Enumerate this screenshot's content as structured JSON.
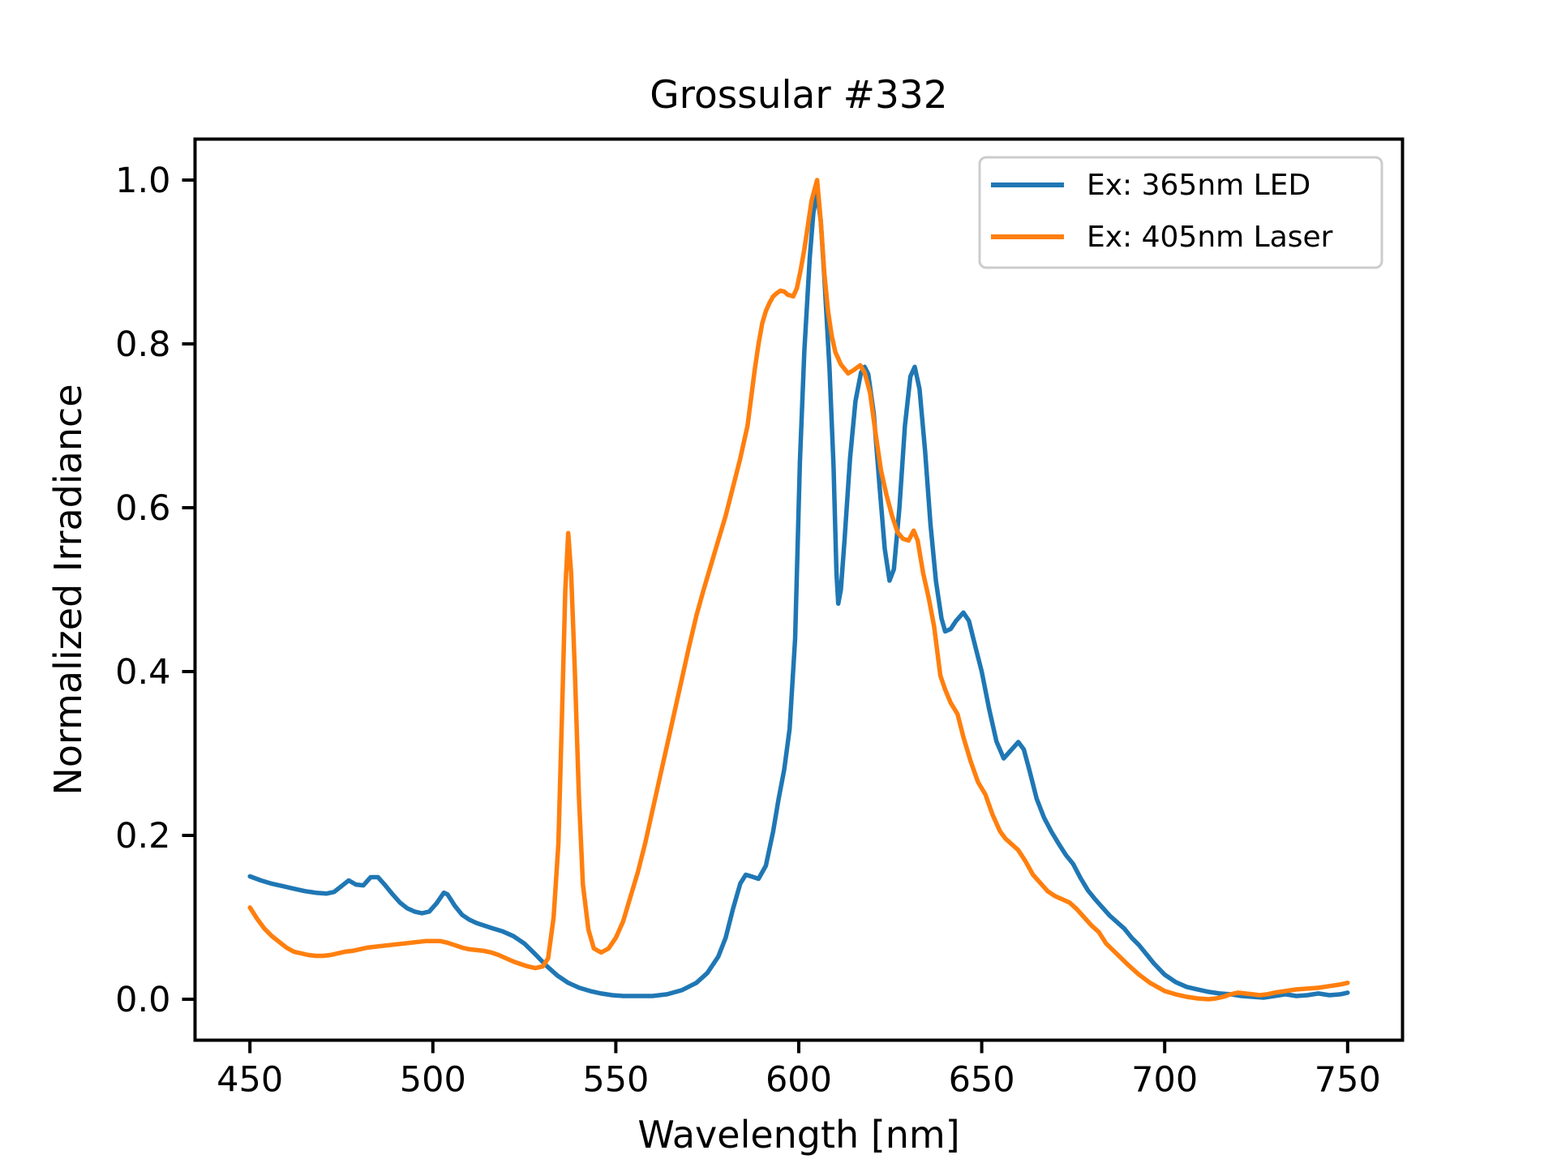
{
  "figure": {
    "background": "#ffffff",
    "text_color": "#000000",
    "spine_color": "#000000"
  },
  "legend": {
    "border_color": "#cccccc",
    "background": "#ffffff"
  },
  "chart_data": {
    "type": "line",
    "title": "Grossular #332",
    "xlabel": "Wavelength [nm]",
    "ylabel": "Normalized Irradiance",
    "xlim": [
      435,
      765
    ],
    "ylim": [
      -0.05,
      1.05
    ],
    "x_ticks": [
      450,
      500,
      550,
      600,
      650,
      700,
      750
    ],
    "y_ticks": [
      0.0,
      0.2,
      0.4,
      0.6,
      0.8,
      1.0
    ],
    "grid": false,
    "legend_position": "upper right",
    "series": [
      {
        "name": "Ex: 365nm LED",
        "color": "#1f77b4",
        "points": [
          [
            450,
            0.15
          ],
          [
            453,
            0.145
          ],
          [
            456,
            0.141
          ],
          [
            459,
            0.138
          ],
          [
            462,
            0.135
          ],
          [
            465,
            0.132
          ],
          [
            468,
            0.13
          ],
          [
            471,
            0.129
          ],
          [
            473,
            0.131
          ],
          [
            475,
            0.138
          ],
          [
            477,
            0.145
          ],
          [
            479,
            0.14
          ],
          [
            481,
            0.139
          ],
          [
            483,
            0.149
          ],
          [
            485,
            0.149
          ],
          [
            487,
            0.139
          ],
          [
            489,
            0.128
          ],
          [
            491,
            0.118
          ],
          [
            493,
            0.111
          ],
          [
            495,
            0.107
          ],
          [
            497,
            0.105
          ],
          [
            499,
            0.107
          ],
          [
            501,
            0.117
          ],
          [
            503,
            0.13
          ],
          [
            504,
            0.128
          ],
          [
            506,
            0.114
          ],
          [
            508,
            0.103
          ],
          [
            510,
            0.097
          ],
          [
            512,
            0.093
          ],
          [
            514,
            0.09
          ],
          [
            516,
            0.087
          ],
          [
            519,
            0.083
          ],
          [
            522,
            0.077
          ],
          [
            525,
            0.068
          ],
          [
            528,
            0.055
          ],
          [
            531,
            0.041
          ],
          [
            534,
            0.029
          ],
          [
            537,
            0.02
          ],
          [
            540,
            0.014
          ],
          [
            543,
            0.01
          ],
          [
            546,
            0.007
          ],
          [
            549,
            0.005
          ],
          [
            552,
            0.004
          ],
          [
            556,
            0.004
          ],
          [
            560,
            0.004
          ],
          [
            564,
            0.006
          ],
          [
            568,
            0.011
          ],
          [
            572,
            0.02
          ],
          [
            575,
            0.032
          ],
          [
            578,
            0.052
          ],
          [
            580,
            0.075
          ],
          [
            582,
            0.11
          ],
          [
            584,
            0.141
          ],
          [
            585.5,
            0.152
          ],
          [
            587,
            0.15
          ],
          [
            589,
            0.147
          ],
          [
            591,
            0.163
          ],
          [
            593,
            0.205
          ],
          [
            594.5,
            0.245
          ],
          [
            596,
            0.28
          ],
          [
            597.5,
            0.33
          ],
          [
            599,
            0.44
          ],
          [
            600.3,
            0.656
          ],
          [
            601.5,
            0.79
          ],
          [
            603,
            0.905
          ],
          [
            604,
            0.96
          ],
          [
            605,
            0.985
          ],
          [
            606,
            0.95
          ],
          [
            607,
            0.88
          ],
          [
            608.4,
            0.77
          ],
          [
            609.5,
            0.65
          ],
          [
            610.3,
            0.52
          ],
          [
            610.8,
            0.483
          ],
          [
            611.5,
            0.5
          ],
          [
            612.5,
            0.56
          ],
          [
            614,
            0.66
          ],
          [
            615.5,
            0.73
          ],
          [
            617,
            0.765
          ],
          [
            618,
            0.772
          ],
          [
            619,
            0.763
          ],
          [
            620.5,
            0.715
          ],
          [
            622,
            0.63
          ],
          [
            623.5,
            0.55
          ],
          [
            624.8,
            0.511
          ],
          [
            626,
            0.525
          ],
          [
            627.5,
            0.6
          ],
          [
            629,
            0.7
          ],
          [
            630.5,
            0.76
          ],
          [
            631.7,
            0.772
          ],
          [
            633,
            0.745
          ],
          [
            634.5,
            0.67
          ],
          [
            636,
            0.58
          ],
          [
            637.5,
            0.51
          ],
          [
            639,
            0.465
          ],
          [
            640,
            0.449
          ],
          [
            641.5,
            0.452
          ],
          [
            643,
            0.462
          ],
          [
            645,
            0.472
          ],
          [
            646.5,
            0.462
          ],
          [
            648,
            0.435
          ],
          [
            650,
            0.4
          ],
          [
            652,
            0.355
          ],
          [
            654,
            0.315
          ],
          [
            656,
            0.294
          ],
          [
            658,
            0.304
          ],
          [
            660,
            0.314
          ],
          [
            661.5,
            0.305
          ],
          [
            663,
            0.28
          ],
          [
            665,
            0.245
          ],
          [
            667,
            0.222
          ],
          [
            669,
            0.205
          ],
          [
            671,
            0.19
          ],
          [
            673,
            0.176
          ],
          [
            675,
            0.165
          ],
          [
            677,
            0.148
          ],
          [
            679,
            0.133
          ],
          [
            681,
            0.122
          ],
          [
            683,
            0.112
          ],
          [
            685,
            0.102
          ],
          [
            687,
            0.094
          ],
          [
            689,
            0.086
          ],
          [
            691,
            0.075
          ],
          [
            693,
            0.066
          ],
          [
            695,
            0.055
          ],
          [
            697,
            0.044
          ],
          [
            700,
            0.03
          ],
          [
            703,
            0.021
          ],
          [
            706,
            0.015
          ],
          [
            709,
            0.012
          ],
          [
            712,
            0.009
          ],
          [
            715,
            0.007
          ],
          [
            718,
            0.006
          ],
          [
            721,
            0.004
          ],
          [
            724,
            0.003
          ],
          [
            727,
            0.002
          ],
          [
            730,
            0.004
          ],
          [
            733,
            0.006
          ],
          [
            736,
            0.004
          ],
          [
            739,
            0.005
          ],
          [
            742,
            0.007
          ],
          [
            745,
            0.005
          ],
          [
            748,
            0.006
          ],
          [
            750,
            0.008
          ]
        ]
      },
      {
        "name": "Ex: 405nm Laser",
        "color": "#ff7f0e",
        "points": [
          [
            450,
            0.112
          ],
          [
            452,
            0.098
          ],
          [
            454,
            0.086
          ],
          [
            456,
            0.077
          ],
          [
            458,
            0.07
          ],
          [
            460,
            0.063
          ],
          [
            462,
            0.058
          ],
          [
            464,
            0.056
          ],
          [
            466,
            0.054
          ],
          [
            468,
            0.053
          ],
          [
            470,
            0.053
          ],
          [
            472,
            0.054
          ],
          [
            474,
            0.056
          ],
          [
            476,
            0.058
          ],
          [
            478,
            0.059
          ],
          [
            480,
            0.061
          ],
          [
            482,
            0.063
          ],
          [
            484,
            0.064
          ],
          [
            486,
            0.065
          ],
          [
            488,
            0.066
          ],
          [
            490,
            0.067
          ],
          [
            492,
            0.068
          ],
          [
            494,
            0.069
          ],
          [
            496,
            0.07
          ],
          [
            498,
            0.071
          ],
          [
            500,
            0.071
          ],
          [
            502,
            0.071
          ],
          [
            504,
            0.069
          ],
          [
            506,
            0.066
          ],
          [
            508,
            0.063
          ],
          [
            510,
            0.061
          ],
          [
            512,
            0.06
          ],
          [
            514,
            0.059
          ],
          [
            516,
            0.057
          ],
          [
            518,
            0.054
          ],
          [
            520,
            0.05
          ],
          [
            522,
            0.046
          ],
          [
            524,
            0.043
          ],
          [
            526,
            0.04
          ],
          [
            528,
            0.038
          ],
          [
            530,
            0.04
          ],
          [
            531.5,
            0.05
          ],
          [
            533,
            0.1
          ],
          [
            534.3,
            0.19
          ],
          [
            535.3,
            0.35
          ],
          [
            536.2,
            0.5
          ],
          [
            537,
            0.569
          ],
          [
            537.8,
            0.52
          ],
          [
            538.8,
            0.4
          ],
          [
            539.9,
            0.25
          ],
          [
            541,
            0.14
          ],
          [
            542.5,
            0.085
          ],
          [
            544,
            0.062
          ],
          [
            546,
            0.057
          ],
          [
            548,
            0.062
          ],
          [
            550,
            0.075
          ],
          [
            552,
            0.095
          ],
          [
            554,
            0.125
          ],
          [
            556,
            0.155
          ],
          [
            558,
            0.19
          ],
          [
            560,
            0.23
          ],
          [
            562,
            0.27
          ],
          [
            564,
            0.31
          ],
          [
            566,
            0.35
          ],
          [
            568,
            0.39
          ],
          [
            570,
            0.43
          ],
          [
            572,
            0.468
          ],
          [
            574,
            0.5
          ],
          [
            576,
            0.53
          ],
          [
            578,
            0.56
          ],
          [
            580,
            0.59
          ],
          [
            582,
            0.625
          ],
          [
            584,
            0.66
          ],
          [
            586,
            0.7
          ],
          [
            588,
            0.77
          ],
          [
            589,
            0.8
          ],
          [
            590,
            0.825
          ],
          [
            591,
            0.84
          ],
          [
            592,
            0.85
          ],
          [
            593,
            0.858
          ],
          [
            594,
            0.862
          ],
          [
            595,
            0.865
          ],
          [
            596,
            0.864
          ],
          [
            597,
            0.86
          ],
          [
            598.5,
            0.858
          ],
          [
            599.5,
            0.868
          ],
          [
            600.5,
            0.89
          ],
          [
            601.5,
            0.915
          ],
          [
            602.5,
            0.945
          ],
          [
            603.5,
            0.975
          ],
          [
            605,
            1.0
          ],
          [
            606,
            0.95
          ],
          [
            607,
            0.885
          ],
          [
            608,
            0.84
          ],
          [
            609,
            0.81
          ],
          [
            610,
            0.79
          ],
          [
            611.5,
            0.775
          ],
          [
            613.5,
            0.764
          ],
          [
            615,
            0.768
          ],
          [
            616.8,
            0.774
          ],
          [
            618,
            0.765
          ],
          [
            619.5,
            0.74
          ],
          [
            621,
            0.69
          ],
          [
            622.5,
            0.645
          ],
          [
            624,
            0.615
          ],
          [
            625.5,
            0.59
          ],
          [
            627,
            0.57
          ],
          [
            628.5,
            0.562
          ],
          [
            630,
            0.56
          ],
          [
            631.4,
            0.572
          ],
          [
            632.5,
            0.56
          ],
          [
            634,
            0.52
          ],
          [
            635.5,
            0.49
          ],
          [
            637,
            0.455
          ],
          [
            638.7,
            0.395
          ],
          [
            640,
            0.378
          ],
          [
            641.5,
            0.362
          ],
          [
            643.4,
            0.348
          ],
          [
            645,
            0.32
          ],
          [
            647,
            0.29
          ],
          [
            649,
            0.265
          ],
          [
            651,
            0.25
          ],
          [
            653,
            0.225
          ],
          [
            655,
            0.205
          ],
          [
            656.5,
            0.196
          ],
          [
            658,
            0.19
          ],
          [
            660,
            0.182
          ],
          [
            662,
            0.168
          ],
          [
            664,
            0.152
          ],
          [
            666,
            0.142
          ],
          [
            668,
            0.132
          ],
          [
            670,
            0.126
          ],
          [
            672,
            0.122
          ],
          [
            674,
            0.118
          ],
          [
            676,
            0.11
          ],
          [
            678,
            0.1
          ],
          [
            680,
            0.09
          ],
          [
            682,
            0.082
          ],
          [
            684,
            0.068
          ],
          [
            687,
            0.055
          ],
          [
            690,
            0.042
          ],
          [
            693,
            0.03
          ],
          [
            696,
            0.02
          ],
          [
            700,
            0.01
          ],
          [
            703,
            0.006
          ],
          [
            706,
            0.003
          ],
          [
            709,
            0.001
          ],
          [
            712,
            0.0
          ],
          [
            714,
            0.001
          ],
          [
            716,
            0.003
          ],
          [
            718,
            0.006
          ],
          [
            720,
            0.008
          ],
          [
            722,
            0.007
          ],
          [
            724,
            0.006
          ],
          [
            726,
            0.005
          ],
          [
            728,
            0.006
          ],
          [
            730,
            0.008
          ],
          [
            733,
            0.01
          ],
          [
            736,
            0.012
          ],
          [
            739,
            0.013
          ],
          [
            742,
            0.014
          ],
          [
            745,
            0.016
          ],
          [
            748,
            0.018
          ],
          [
            750,
            0.02
          ]
        ]
      }
    ]
  }
}
